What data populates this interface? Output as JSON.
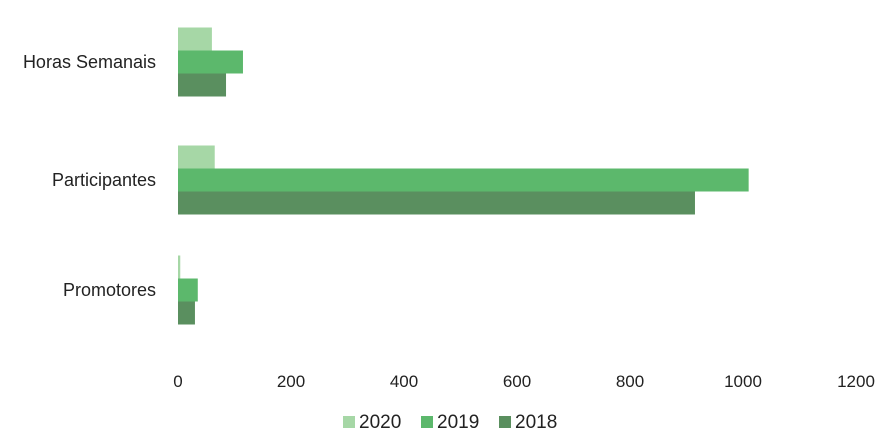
{
  "chart_data": {
    "type": "bar",
    "orientation": "horizontal",
    "categories": [
      "Horas Semanais",
      "Participantes",
      "Promotores"
    ],
    "series": [
      {
        "name": "2020",
        "color": "#a6d7a6",
        "values": [
          60,
          65,
          4
        ]
      },
      {
        "name": "2019",
        "color": "#5cb86c",
        "values": [
          115,
          1010,
          35
        ]
      },
      {
        "name": "2018",
        "color": "#5a8f5f",
        "values": [
          85,
          915,
          30
        ]
      }
    ],
    "x_ticks": [
      "0",
      "200",
      "400",
      "600",
      "800",
      "1000",
      "1200"
    ],
    "xlim": [
      0,
      1200
    ],
    "grid": false,
    "legend_position": "bottom"
  }
}
